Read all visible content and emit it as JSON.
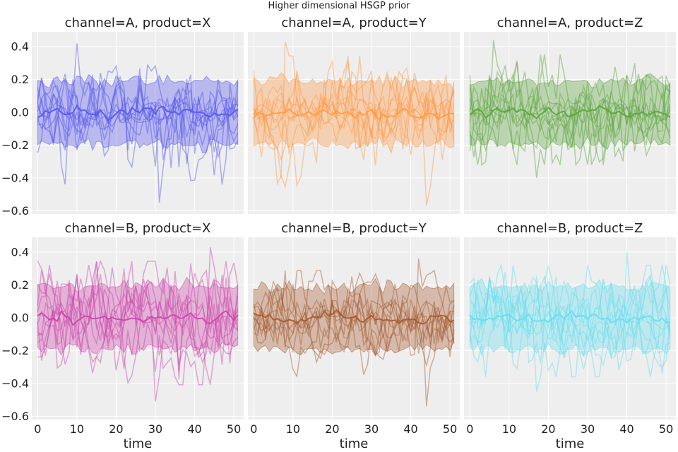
{
  "figure": {
    "suptitle": "Higher dimensional HSGP prior",
    "xlabel": "time"
  },
  "chart_data": {
    "type": "line",
    "title": "Higher dimensional HSGP prior",
    "xlabel": "time",
    "ylabel": "",
    "xlim": [
      -1.5,
      52.5
    ],
    "ylim": [
      -0.62,
      0.49
    ],
    "xticks": [
      0,
      10,
      20,
      30,
      40,
      50
    ],
    "yticks": [
      0.4,
      0.2,
      0.0,
      -0.2,
      -0.4,
      -0.6
    ],
    "xtick_labels": [
      "0",
      "10",
      "20",
      "30",
      "40",
      "50"
    ],
    "ytick_labels": [
      "0.4",
      "0.2",
      "0.0",
      "−0.2",
      "−0.4",
      "−0.6"
    ],
    "grid": true,
    "sharex": true,
    "sharey": true,
    "n_time": 52,
    "n_samples": 10,
    "band": {
      "upper": 0.19,
      "lower": -0.19,
      "description": "shaded interval around 0 per panel"
    },
    "panels": [
      {
        "title": "channel=A, product=X",
        "channel": "A",
        "product": "X",
        "color": "#5555ee",
        "extremes": {
          "max": 0.42,
          "min": -0.55
        }
      },
      {
        "title": "channel=A, product=Y",
        "channel": "A",
        "product": "Y",
        "color": "#ff9945",
        "extremes": {
          "max": 0.43,
          "min": -0.57
        }
      },
      {
        "title": "channel=A, product=Z",
        "channel": "A",
        "product": "Z",
        "color": "#5ba33b",
        "extremes": {
          "max": 0.44,
          "min": -0.4
        }
      },
      {
        "title": "channel=B, product=X",
        "channel": "B",
        "product": "X",
        "color": "#cc44aa",
        "extremes": {
          "max": 0.43,
          "min": -0.51
        }
      },
      {
        "title": "channel=B, product=Y",
        "channel": "B",
        "product": "Y",
        "color": "#a55a2e",
        "extremes": {
          "max": 0.36,
          "min": -0.54
        }
      },
      {
        "title": "channel=B, product=Z",
        "channel": "B",
        "product": "Z",
        "color": "#66ddee",
        "extremes": {
          "max": 0.4,
          "min": -0.45
        }
      }
    ]
  }
}
